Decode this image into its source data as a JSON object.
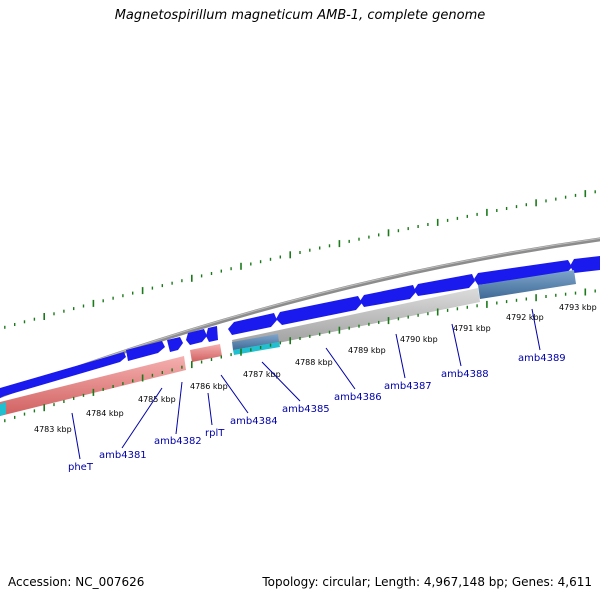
{
  "title": "Magnetospirillum magneticum AMB-1, complete genome",
  "accession": "Accession: NC_007626",
  "summary": "Topology: circular; Length: 4,967,148 bp; Genes: 4,611",
  "scale_labels": [
    "4783 kbp",
    "4784 kbp",
    "4785 kbp",
    "4786 kbp",
    "4787 kbp",
    "4788 kbp",
    "4789 kbp",
    "4790 kbp",
    "4791 kbp",
    "4792 kbp",
    "4793 kbp"
  ],
  "genes": [
    "pheT",
    "amb4381",
    "amb4382",
    "rplT",
    "amb4384",
    "amb4385",
    "amb4386",
    "amb4387",
    "amb4388",
    "amb4389"
  ],
  "colors": {
    "backbone": "#909090",
    "cds_arrow": "#1a1aee",
    "red_feature": "#f08a8a",
    "grey_feature": "#c0c0c0",
    "steelblue_feature": "#4f7faf",
    "cyan_feature": "#20c0d0",
    "ticks": "#1a7a1a",
    "gene_label": "#0000aa"
  }
}
